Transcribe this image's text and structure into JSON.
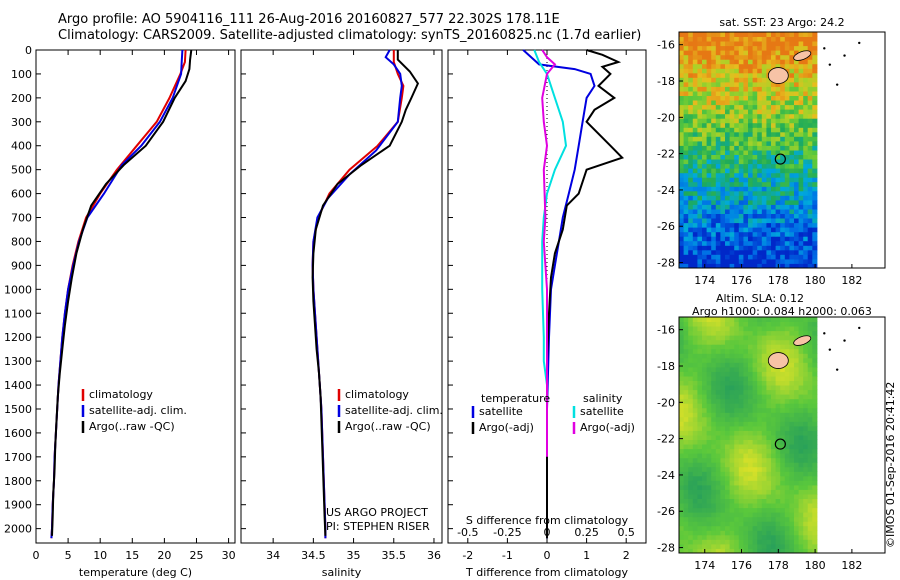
{
  "header": {
    "line1": "Argo profile: AO 5904116_111 26-Aug-2016 20160827_577 22.302S 178.11E",
    "line2": "Climatology: CARS2009. Satellite-adjusted climatology: synTS_20160825.nc (1.7d earlier)"
  },
  "side_label": "©IMOS 01-Sep-2016 20:41:42",
  "colors": {
    "climatology": "#e00000",
    "satellite": "#0000e0",
    "argo": "#000000",
    "sal_satellite": "#00e0e0",
    "sal_argo": "#e000e0",
    "land": "#f7c3a6"
  },
  "chart_data": [
    {
      "id": "temperature",
      "type": "line",
      "xlabel": "temperature (deg C)",
      "ylabel": "",
      "xlim": [
        0,
        31
      ],
      "ylim": [
        2060,
        0
      ],
      "xticks": [
        0,
        5,
        10,
        15,
        20,
        25,
        30
      ],
      "yticks": [
        0,
        100,
        200,
        300,
        400,
        500,
        600,
        700,
        800,
        900,
        1000,
        1100,
        1200,
        1300,
        1400,
        1500,
        1600,
        1700,
        1800,
        1900,
        2000
      ],
      "legend": [
        "climatology",
        "satellite-adj. clim.",
        "Argo(..raw -QC)"
      ],
      "series": [
        {
          "name": "climatology",
          "color": "#e00000",
          "points": [
            [
              23.3,
              0
            ],
            [
              23.2,
              50
            ],
            [
              22.5,
              100
            ],
            [
              20.8,
              200
            ],
            [
              18.8,
              300
            ],
            [
              15.7,
              400
            ],
            [
              12.6,
              500
            ],
            [
              10.0,
              600
            ],
            [
              7.8,
              700
            ],
            [
              6.6,
              800
            ],
            [
              5.7,
              900
            ],
            [
              5.0,
              1000
            ],
            [
              4.5,
              1100
            ],
            [
              4.1,
              1200
            ],
            [
              3.8,
              1300
            ],
            [
              3.5,
              1400
            ],
            [
              3.3,
              1500
            ],
            [
              3.1,
              1600
            ],
            [
              2.9,
              1700
            ],
            [
              2.8,
              1800
            ],
            [
              2.6,
              1900
            ],
            [
              2.5,
              2000
            ],
            [
              2.4,
              2040
            ]
          ]
        },
        {
          "name": "satellite-adj. clim.",
          "color": "#0000e0",
          "points": [
            [
              22.8,
              0
            ],
            [
              22.7,
              50
            ],
            [
              22.6,
              100
            ],
            [
              21.3,
              200
            ],
            [
              19.3,
              300
            ],
            [
              16.4,
              400
            ],
            [
              13.4,
              480
            ],
            [
              10.6,
              600
            ],
            [
              8.0,
              700
            ],
            [
              6.7,
              800
            ],
            [
              5.8,
              900
            ],
            [
              5.0,
              1000
            ],
            [
              4.5,
              1100
            ],
            [
              4.1,
              1200
            ],
            [
              3.8,
              1300
            ],
            [
              3.5,
              1400
            ],
            [
              3.3,
              1500
            ],
            [
              3.1,
              1600
            ],
            [
              2.9,
              1700
            ],
            [
              2.8,
              1800
            ],
            [
              2.6,
              1900
            ],
            [
              2.5,
              2000
            ],
            [
              2.4,
              2040
            ]
          ]
        },
        {
          "name": "Argo(..raw -QC)",
          "color": "#000000",
          "points": [
            [
              24.2,
              0
            ],
            [
              24.0,
              40
            ],
            [
              23.9,
              80
            ],
            [
              23.3,
              130
            ],
            [
              21.6,
              200
            ],
            [
              19.8,
              300
            ],
            [
              17.1,
              400
            ],
            [
              13.7,
              480
            ],
            [
              10.9,
              560
            ],
            [
              8.6,
              650
            ],
            [
              7.3,
              750
            ],
            [
              6.3,
              850
            ],
            [
              5.6,
              950
            ],
            [
              5.0,
              1050
            ],
            [
              4.5,
              1150
            ],
            [
              4.1,
              1250
            ],
            [
              3.7,
              1350
            ],
            [
              3.4,
              1450
            ],
            [
              3.2,
              1550
            ],
            [
              3.0,
              1650
            ],
            [
              2.9,
              1750
            ],
            [
              2.7,
              1850
            ],
            [
              2.6,
              1950
            ],
            [
              2.5,
              2030
            ]
          ]
        }
      ]
    },
    {
      "id": "salinity",
      "type": "line",
      "xlabel": "salinity",
      "ylabel": "",
      "xlim": [
        33.6,
        36.1
      ],
      "ylim": [
        2060,
        0
      ],
      "xticks": [
        34,
        34.5,
        35,
        35.5,
        36
      ],
      "legend": [
        "climatology",
        "satellite-adj. clim.",
        "Argo(..raw -QC)"
      ],
      "annotation": [
        "US ARGO PROJECT",
        "PI: STEPHEN RISER"
      ],
      "series": [
        {
          "name": "climatology",
          "color": "#e00000",
          "points": [
            [
              35.5,
              0
            ],
            [
              35.5,
              50
            ],
            [
              35.55,
              100
            ],
            [
              35.62,
              150
            ],
            [
              35.6,
              200
            ],
            [
              35.55,
              300
            ],
            [
              35.3,
              400
            ],
            [
              34.95,
              500
            ],
            [
              34.7,
              600
            ],
            [
              34.56,
              700
            ],
            [
              34.5,
              800
            ],
            [
              34.49,
              900
            ],
            [
              34.5,
              1000
            ],
            [
              34.52,
              1100
            ],
            [
              34.54,
              1200
            ],
            [
              34.56,
              1300
            ],
            [
              34.58,
              1400
            ],
            [
              34.6,
              1500
            ],
            [
              34.61,
              1600
            ],
            [
              34.62,
              1700
            ],
            [
              34.63,
              1800
            ],
            [
              34.64,
              1900
            ],
            [
              34.65,
              2000
            ],
            [
              34.65,
              2040
            ]
          ]
        },
        {
          "name": "satellite-adj. clim.",
          "color": "#0000e0",
          "points": [
            [
              35.45,
              0
            ],
            [
              35.4,
              30
            ],
            [
              35.5,
              60
            ],
            [
              35.58,
              100
            ],
            [
              35.6,
              150
            ],
            [
              35.58,
              200
            ],
            [
              35.55,
              300
            ],
            [
              35.28,
              420
            ],
            [
              34.95,
              520
            ],
            [
              34.68,
              620
            ],
            [
              34.55,
              700
            ],
            [
              34.5,
              800
            ],
            [
              34.49,
              900
            ],
            [
              34.5,
              1000
            ],
            [
              34.52,
              1100
            ],
            [
              34.54,
              1200
            ],
            [
              34.56,
              1300
            ],
            [
              34.58,
              1400
            ],
            [
              34.6,
              1500
            ],
            [
              34.61,
              1600
            ],
            [
              34.62,
              1700
            ],
            [
              34.63,
              1800
            ],
            [
              34.64,
              1900
            ],
            [
              34.65,
              2000
            ],
            [
              34.65,
              2040
            ]
          ]
        },
        {
          "name": "Argo(..raw -QC)",
          "color": "#000000",
          "points": [
            [
              35.55,
              0
            ],
            [
              35.55,
              40
            ],
            [
              35.7,
              90
            ],
            [
              35.8,
              140
            ],
            [
              35.72,
              200
            ],
            [
              35.65,
              250
            ],
            [
              35.6,
              300
            ],
            [
              35.45,
              400
            ],
            [
              35.1,
              480
            ],
            [
              34.8,
              560
            ],
            [
              34.62,
              650
            ],
            [
              34.53,
              750
            ],
            [
              34.5,
              850
            ],
            [
              34.49,
              950
            ],
            [
              34.5,
              1050
            ],
            [
              34.52,
              1150
            ],
            [
              34.54,
              1250
            ],
            [
              34.57,
              1350
            ],
            [
              34.59,
              1450
            ],
            [
              34.6,
              1550
            ],
            [
              34.61,
              1650
            ],
            [
              34.62,
              1750
            ],
            [
              34.63,
              1850
            ],
            [
              34.64,
              1950
            ],
            [
              34.65,
              2030
            ]
          ]
        }
      ]
    },
    {
      "id": "difference",
      "type": "line",
      "xlabel": "T difference from climatology",
      "xlabel_top": "S difference from climatology",
      "ylabel": "",
      "xlim": [
        -2.5,
        2.5
      ],
      "ylim": [
        2060,
        0
      ],
      "xticks": [
        -2,
        -1,
        0,
        1,
        2
      ],
      "sticks": [
        -0.5,
        -0.25,
        0,
        0.25,
        0.5
      ],
      "legend_temperature_title": "temperature",
      "legend_salinity_title": "salinity",
      "legend": [
        "satellite",
        "Argo(-adj)",
        "satellite",
        "Argo(-adj)"
      ],
      "series": [
        {
          "name": "satellite",
          "kind": "T",
          "color": "#0000e0",
          "points": [
            [
              -0.6,
              0
            ],
            [
              -0.4,
              30
            ],
            [
              -0.2,
              60
            ],
            [
              0.7,
              80
            ],
            [
              1.1,
              100
            ],
            [
              1.2,
              150
            ],
            [
              1.0,
              200
            ],
            [
              0.9,
              300
            ],
            [
              0.8,
              400
            ],
            [
              0.7,
              500
            ],
            [
              0.55,
              600
            ],
            [
              0.4,
              700
            ],
            [
              0.3,
              800
            ],
            [
              0.2,
              900
            ],
            [
              0.1,
              1000
            ],
            [
              0.05,
              1200
            ],
            [
              0,
              1500
            ],
            [
              0,
              2040
            ]
          ]
        },
        {
          "name": "Argo(-adj)",
          "kind": "T",
          "color": "#000000",
          "points": [
            [
              1.0,
              0
            ],
            [
              1.4,
              20
            ],
            [
              1.8,
              50
            ],
            [
              1.4,
              70
            ],
            [
              1.6,
              100
            ],
            [
              1.3,
              150
            ],
            [
              1.7,
              200
            ],
            [
              1.2,
              250
            ],
            [
              1.0,
              300
            ],
            [
              1.6,
              400
            ],
            [
              1.9,
              450
            ],
            [
              1.0,
              500
            ],
            [
              0.8,
              600
            ],
            [
              0.5,
              650
            ],
            [
              0.4,
              750
            ],
            [
              0.2,
              850
            ],
            [
              0.1,
              950
            ],
            [
              0.05,
              1100
            ],
            [
              0,
              1300
            ],
            [
              0,
              2040
            ]
          ]
        },
        {
          "name": "satellite",
          "kind": "S",
          "color": "#00e0e0",
          "points": [
            [
              -0.08,
              0
            ],
            [
              -0.05,
              50
            ],
            [
              0.0,
              100
            ],
            [
              0.05,
              200
            ],
            [
              0.1,
              300
            ],
            [
              0.12,
              400
            ],
            [
              0.05,
              500
            ],
            [
              0.0,
              600
            ],
            [
              -0.02,
              700
            ],
            [
              -0.03,
              800
            ],
            [
              -0.03,
              900
            ],
            [
              -0.03,
              1000
            ],
            [
              -0.02,
              1200
            ],
            [
              -0.02,
              1300
            ],
            [
              0,
              1400
            ],
            [
              0,
              1500
            ]
          ]
        },
        {
          "name": "Argo(-adj)",
          "kind": "S",
          "color": "#e000e0",
          "points": [
            [
              -0.03,
              0
            ],
            [
              0.0,
              30
            ],
            [
              0.05,
              60
            ],
            [
              0.0,
              100
            ],
            [
              -0.03,
              200
            ],
            [
              -0.02,
              300
            ],
            [
              0.0,
              400
            ],
            [
              -0.02,
              500
            ],
            [
              -0.01,
              700
            ],
            [
              -0.02,
              800
            ],
            [
              -0.01,
              900
            ],
            [
              0,
              1000
            ],
            [
              0,
              1200
            ],
            [
              0,
              1500
            ],
            [
              0,
              1700
            ]
          ]
        }
      ]
    },
    {
      "id": "sst_map",
      "type": "heatmap",
      "title": "sat. SST: 23 Argo: 24.2",
      "xticks": [
        174,
        176,
        178,
        180,
        182
      ],
      "yticks": [
        -16,
        -18,
        -20,
        -22,
        -24,
        -26,
        -28
      ],
      "xlim": [
        172.6,
        183.8
      ],
      "ylim": [
        -28.3,
        -15.3
      ],
      "marker": [
        178.11,
        -22.3
      ]
    },
    {
      "id": "sla_map",
      "type": "heatmap",
      "title": "Altim. SLA: 0.12",
      "subtitle": "Argo h1000: 0.084 h2000: 0.063",
      "xticks": [
        174,
        176,
        178,
        180,
        182
      ],
      "yticks": [
        -16,
        -18,
        -20,
        -22,
        -24,
        -26,
        -28
      ],
      "xlim": [
        172.6,
        183.8
      ],
      "ylim": [
        -28.3,
        -15.3
      ],
      "marker": [
        178.11,
        -22.3
      ]
    }
  ]
}
